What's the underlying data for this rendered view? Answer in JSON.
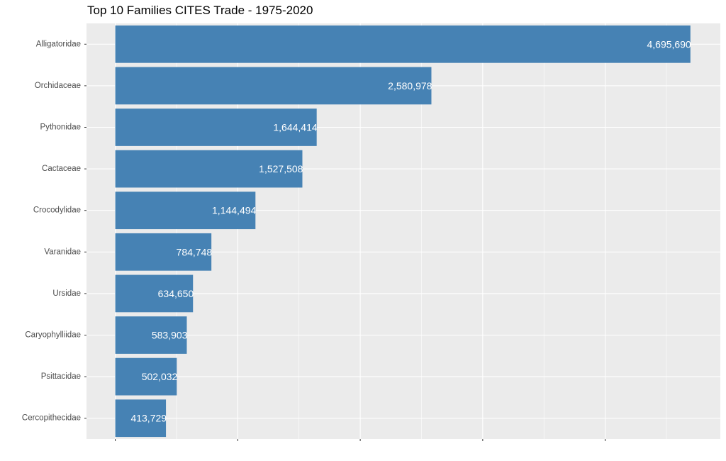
{
  "chart_data": {
    "type": "bar",
    "orientation": "horizontal",
    "title": "Top 10 Families CITES Trade - 1975-2020",
    "xlabel": "",
    "ylabel": "",
    "categories": [
      "Alligatoridae",
      "Orchidaceae",
      "Pythonidae",
      "Cactaceae",
      "Crocodylidae",
      "Varanidae",
      "Ursidae",
      "Caryophylliidae",
      "Psittacidae",
      "Cercopithecidae"
    ],
    "values": [
      4695690,
      2580978,
      1644414,
      1527508,
      1144494,
      784748,
      634650,
      583903,
      502032,
      413729
    ],
    "value_labels": [
      "4,695,690",
      "2,580,978",
      "1,644,414",
      "1,527,508",
      "1,144,494",
      "784,748",
      "634,650",
      "583,903",
      "502,032",
      "413,729"
    ],
    "xlim": [
      -235000,
      4940000
    ],
    "bar_color": "#4682b4",
    "panel_color": "#ebebeb",
    "grid": true,
    "x_tick_labels_shown": false
  }
}
